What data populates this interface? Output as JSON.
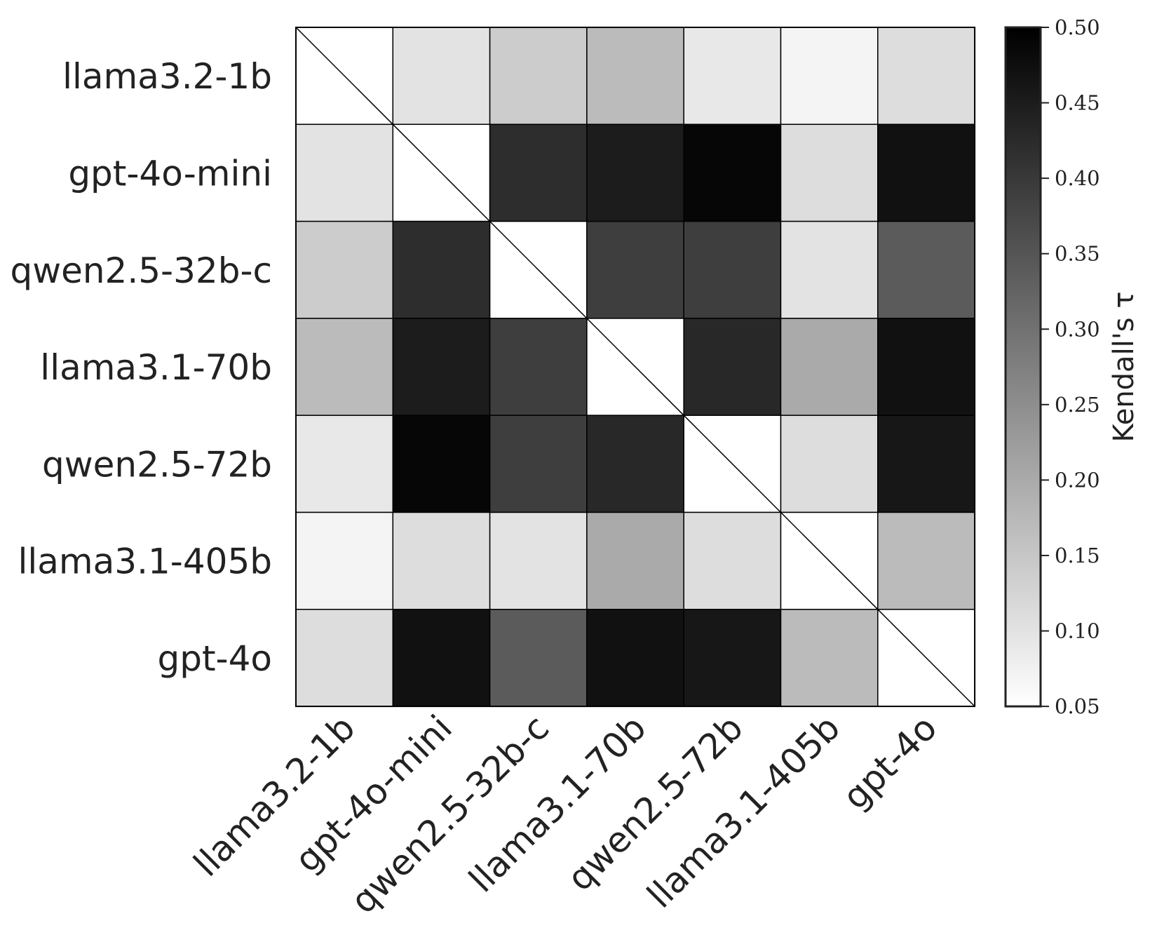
{
  "chart_data": {
    "type": "heatmap",
    "rows": [
      "llama3.2-1b",
      "gpt-4o-mini",
      "qwen2.5-32b-c",
      "llama3.1-70b",
      "qwen2.5-72b",
      "llama3.1-405b",
      "gpt-4o"
    ],
    "columns": [
      "llama3.2-1b",
      "gpt-4o-mini",
      "qwen2.5-32b-c",
      "llama3.1-70b",
      "qwen2.5-72b",
      "llama3.1-405b",
      "gpt-4o"
    ],
    "values": [
      [
        null,
        0.1,
        0.14,
        0.17,
        0.09,
        0.07,
        0.11
      ],
      [
        0.1,
        null,
        0.42,
        0.45,
        0.49,
        0.11,
        0.47
      ],
      [
        0.14,
        0.42,
        null,
        0.39,
        0.39,
        0.1,
        0.34
      ],
      [
        0.17,
        0.45,
        0.39,
        null,
        0.43,
        0.2,
        0.47
      ],
      [
        0.09,
        0.49,
        0.39,
        0.43,
        null,
        0.11,
        0.46
      ],
      [
        0.07,
        0.11,
        0.1,
        0.2,
        0.11,
        null,
        0.17
      ],
      [
        0.11,
        0.47,
        0.34,
        0.47,
        0.46,
        0.17,
        null
      ]
    ],
    "diagonal": "crossed-out",
    "colormap": "Greys",
    "vmin": 0.05,
    "vmax": 0.5,
    "colorbar": {
      "label": "Kendall's τ",
      "ticks": [
        "0.05",
        "0.10",
        "0.15",
        "0.20",
        "0.25",
        "0.30",
        "0.35",
        "0.40",
        "0.45",
        "0.50"
      ],
      "position": "right"
    },
    "title": "",
    "xlabel": "",
    "ylabel": ""
  }
}
